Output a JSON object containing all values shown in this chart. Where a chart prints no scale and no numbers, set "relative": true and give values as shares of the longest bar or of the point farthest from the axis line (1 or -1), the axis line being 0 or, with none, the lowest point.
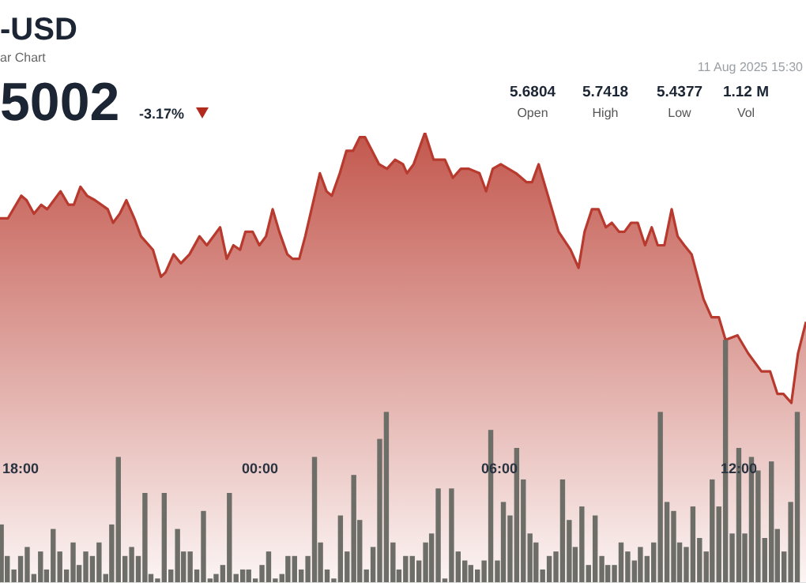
{
  "chart_data": {
    "type": "area",
    "title": "-USD",
    "subtitle": "ar Chart",
    "annotations": [
      "5002",
      "-3.17%",
      "11 Aug 2025 15:30",
      "5.6804",
      "Open",
      "5.7418",
      "High",
      "5.4377",
      "Low",
      "1.12 M",
      "Vol"
    ],
    "relative": true,
    "xlim": [
      "2025-08-10T17:29",
      "2025-08-11T13:41"
    ],
    "xticks": [
      {
        "value": "2025-08-10T18:00",
        "label": "18:00"
      },
      {
        "value": "2025-08-11T00:00",
        "label": "00:00"
      },
      {
        "value": "2025-08-11T06:00",
        "label": "06:00"
      },
      {
        "value": "2025-08-11T12:00",
        "label": "12:00"
      }
    ],
    "series": [
      {
        "color": "#b83a2e",
        "x": [
          "2025-08-10T17:29",
          "2025-08-10T17:41",
          "2025-08-10T18:01",
          "2025-08-10T18:09",
          "2025-08-10T18:20",
          "2025-08-10T18:31",
          "2025-08-10T18:40",
          "2025-08-10T19:00",
          "2025-08-10T19:12",
          "2025-08-10T19:20",
          "2025-08-10T19:30",
          "2025-08-10T19:40",
          "2025-08-10T19:52",
          "2025-08-10T20:11",
          "2025-08-10T20:19",
          "2025-08-10T20:29",
          "2025-08-10T20:39",
          "2025-08-10T20:51",
          "2025-08-10T21:01",
          "2025-08-10T21:19",
          "2025-08-10T21:31",
          "2025-08-10T21:38",
          "2025-08-10T21:50",
          "2025-08-10T22:01",
          "2025-08-10T22:14",
          "2025-08-10T22:29",
          "2025-08-10T22:40",
          "2025-08-10T23:00",
          "2025-08-10T23:10",
          "2025-08-10T23:20",
          "2025-08-10T23:30",
          "2025-08-10T23:38",
          "2025-08-10T23:49",
          "2025-08-10T23:59",
          "2025-08-11T00:09",
          "2025-08-11T00:19",
          "2025-08-11T00:29",
          "2025-08-11T00:41",
          "2025-08-11T00:49",
          "2025-08-11T00:59",
          "2025-08-11T01:08",
          "2025-08-11T01:30",
          "2025-08-11T01:40",
          "2025-08-11T01:48",
          "2025-08-11T02:00",
          "2025-08-11T02:10",
          "2025-08-11T02:20",
          "2025-08-11T02:30",
          "2025-08-11T02:38",
          "2025-08-11T02:59",
          "2025-08-11T03:11",
          "2025-08-11T03:23",
          "2025-08-11T03:35",
          "2025-08-11T03:41",
          "2025-08-11T03:51",
          "2025-08-11T04:08",
          "2025-08-11T04:21",
          "2025-08-11T04:38",
          "2025-08-11T04:50",
          "2025-08-11T05:02",
          "2025-08-11T05:14",
          "2025-08-11T05:30",
          "2025-08-11T05:40",
          "2025-08-11T05:50",
          "2025-08-11T06:02",
          "2025-08-11T06:25",
          "2025-08-11T06:41",
          "2025-08-11T06:49",
          "2025-08-11T06:59",
          "2025-08-11T07:13",
          "2025-08-11T07:29",
          "2025-08-11T07:47",
          "2025-08-11T07:59",
          "2025-08-11T08:08",
          "2025-08-11T08:19",
          "2025-08-11T08:29",
          "2025-08-11T08:40",
          "2025-08-11T08:49",
          "2025-08-11T09:00",
          "2025-08-11T09:08",
          "2025-08-11T09:18",
          "2025-08-11T09:28",
          "2025-08-11T09:39",
          "2025-08-11T09:49",
          "2025-08-11T09:58",
          "2025-08-11T10:08",
          "2025-08-11T10:19",
          "2025-08-11T10:28",
          "2025-08-11T10:38",
          "2025-08-11T10:49",
          "2025-08-11T11:07",
          "2025-08-11T11:19",
          "2025-08-11T11:30",
          "2025-08-11T11:40",
          "2025-08-11T11:58",
          "2025-08-11T12:14",
          "2025-08-11T12:34",
          "2025-08-11T12:47",
          "2025-08-11T12:58",
          "2025-08-11T13:07",
          "2025-08-11T13:19",
          "2025-08-11T13:29",
          "2025-08-11T13:41"
        ],
        "values": [
          0.81,
          0.81,
          0.86,
          0.85,
          0.82,
          0.84,
          0.83,
          0.87,
          0.84,
          0.84,
          0.88,
          0.86,
          0.85,
          0.83,
          0.8,
          0.82,
          0.85,
          0.81,
          0.77,
          0.74,
          0.68,
          0.69,
          0.73,
          0.71,
          0.73,
          0.77,
          0.75,
          0.79,
          0.72,
          0.75,
          0.74,
          0.78,
          0.78,
          0.75,
          0.77,
          0.83,
          0.78,
          0.73,
          0.72,
          0.72,
          0.77,
          0.91,
          0.87,
          0.86,
          0.91,
          0.96,
          0.96,
          0.99,
          0.99,
          0.93,
          0.92,
          0.94,
          0.93,
          0.91,
          0.93,
          1.0,
          0.94,
          0.94,
          0.9,
          0.92,
          0.92,
          0.91,
          0.87,
          0.92,
          0.93,
          0.91,
          0.89,
          0.89,
          0.93,
          0.86,
          0.78,
          0.74,
          0.7,
          0.78,
          0.83,
          0.83,
          0.79,
          0.8,
          0.78,
          0.78,
          0.8,
          0.8,
          0.75,
          0.79,
          0.75,
          0.75,
          0.83,
          0.77,
          0.75,
          0.73,
          0.63,
          0.59,
          0.59,
          0.54,
          0.55,
          0.51,
          0.47,
          0.47,
          0.42,
          0.42,
          0.4,
          0.51,
          0.58
        ]
      },
      {
        "type": "bar",
        "color": "#6e6e68",
        "x": [
          "2025-08-10T17:31",
          "2025-08-10T17:40",
          "2025-08-10T17:50",
          "2025-08-10T18:00",
          "2025-08-10T18:10",
          "2025-08-10T18:20",
          "2025-08-10T18:30",
          "2025-08-10T18:39",
          "2025-08-10T18:49",
          "2025-08-10T18:59",
          "2025-08-10T19:09",
          "2025-08-10T19:19",
          "2025-08-10T19:28",
          "2025-08-10T19:38",
          "2025-08-10T19:48",
          "2025-08-10T19:58",
          "2025-08-10T20:08",
          "2025-08-10T20:17",
          "2025-08-10T20:27",
          "2025-08-10T20:37",
          "2025-08-10T20:47",
          "2025-08-10T20:57",
          "2025-08-10T21:07",
          "2025-08-10T21:16",
          "2025-08-10T21:26",
          "2025-08-10T21:36",
          "2025-08-10T21:46",
          "2025-08-10T21:56",
          "2025-08-10T22:05",
          "2025-08-10T22:15",
          "2025-08-10T22:25",
          "2025-08-10T22:35",
          "2025-08-10T22:45",
          "2025-08-10T22:54",
          "2025-08-10T23:04",
          "2025-08-10T23:14",
          "2025-08-10T23:24",
          "2025-08-10T23:34",
          "2025-08-10T23:43",
          "2025-08-10T23:53",
          "2025-08-11T00:03",
          "2025-08-11T00:13",
          "2025-08-11T00:23",
          "2025-08-11T00:33",
          "2025-08-11T00:42",
          "2025-08-11T00:52",
          "2025-08-11T01:02",
          "2025-08-11T01:12",
          "2025-08-11T01:22",
          "2025-08-11T01:31",
          "2025-08-11T01:41",
          "2025-08-11T01:51",
          "2025-08-11T02:01",
          "2025-08-11T02:11",
          "2025-08-11T02:21",
          "2025-08-11T02:30",
          "2025-08-11T02:40",
          "2025-08-11T02:50",
          "2025-08-11T03:00",
          "2025-08-11T03:10",
          "2025-08-11T03:20",
          "2025-08-11T03:29",
          "2025-08-11T03:39",
          "2025-08-11T03:49",
          "2025-08-11T03:59",
          "2025-08-11T04:09",
          "2025-08-11T04:18",
          "2025-08-11T04:28",
          "2025-08-11T04:38",
          "2025-08-11T04:48",
          "2025-08-11T04:58",
          "2025-08-11T05:08",
          "2025-08-11T05:17",
          "2025-08-11T05:27",
          "2025-08-11T05:37",
          "2025-08-11T05:47",
          "2025-08-11T05:57",
          "2025-08-11T06:06",
          "2025-08-11T06:16",
          "2025-08-11T06:26",
          "2025-08-11T06:36",
          "2025-08-11T06:46",
          "2025-08-11T06:55",
          "2025-08-11T07:05",
          "2025-08-11T07:15",
          "2025-08-11T07:25",
          "2025-08-11T07:35",
          "2025-08-11T07:45",
          "2025-08-11T07:54",
          "2025-08-11T08:04",
          "2025-08-11T08:14",
          "2025-08-11T08:24",
          "2025-08-11T08:34",
          "2025-08-11T08:43",
          "2025-08-11T08:53",
          "2025-08-11T09:03",
          "2025-08-11T09:13",
          "2025-08-11T09:23",
          "2025-08-11T09:32",
          "2025-08-11T09:42",
          "2025-08-11T09:52",
          "2025-08-11T10:02",
          "2025-08-11T10:12",
          "2025-08-11T10:22",
          "2025-08-11T10:31",
          "2025-08-11T10:41",
          "2025-08-11T10:51",
          "2025-08-11T11:01",
          "2025-08-11T11:11",
          "2025-08-11T11:20",
          "2025-08-11T11:30",
          "2025-08-11T11:40",
          "2025-08-11T11:50",
          "2025-08-11T12:00",
          "2025-08-11T12:09",
          "2025-08-11T12:19",
          "2025-08-11T12:29",
          "2025-08-11T12:39",
          "2025-08-11T12:49",
          "2025-08-11T12:58",
          "2025-08-11T13:08",
          "2025-08-11T13:18",
          "2025-08-11T13:28"
        ],
        "values": [
          0.13,
          0.06,
          0.03,
          0.06,
          0.08,
          0.02,
          0.07,
          0.03,
          0.12,
          0.07,
          0.03,
          0.09,
          0.04,
          0.07,
          0.06,
          0.09,
          0.02,
          0.13,
          0.28,
          0.06,
          0.08,
          0.06,
          0.2,
          0.02,
          0.01,
          0.2,
          0.03,
          0.12,
          0.07,
          0.07,
          0.03,
          0.16,
          0.01,
          0.02,
          0.04,
          0.2,
          0.02,
          0.03,
          0.03,
          0.01,
          0.04,
          0.07,
          0.01,
          0.02,
          0.06,
          0.06,
          0.03,
          0.06,
          0.28,
          0.09,
          0.03,
          0.01,
          0.15,
          0.07,
          0.24,
          0.14,
          0.03,
          0.08,
          0.32,
          0.38,
          0.09,
          0.03,
          0.06,
          0.06,
          0.05,
          0.09,
          0.11,
          0.21,
          0.01,
          0.21,
          0.07,
          0.05,
          0.04,
          0.03,
          0.05,
          0.34,
          0.05,
          0.18,
          0.15,
          0.3,
          0.23,
          0.11,
          0.09,
          0.03,
          0.06,
          0.07,
          0.23,
          0.14,
          0.08,
          0.17,
          0.04,
          0.15,
          0.06,
          0.04,
          0.04,
          0.09,
          0.07,
          0.05,
          0.08,
          0.06,
          0.09,
          0.38,
          0.18,
          0.16,
          0.09,
          0.08,
          0.17,
          0.1,
          0.07,
          0.23,
          0.17,
          0.54,
          0.11,
          0.3,
          0.11,
          0.28,
          0.25,
          0.1,
          0.27,
          0.12,
          0.07,
          0.18,
          0.38
        ]
      }
    ]
  }
}
